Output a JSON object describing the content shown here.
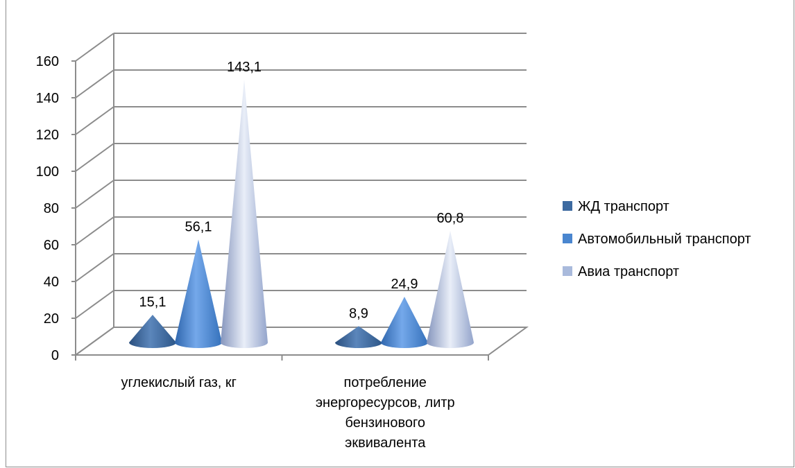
{
  "chart_data": {
    "type": "bar",
    "style": "3d-cone",
    "categories": [
      [
        "углекислый газ, кг"
      ],
      [
        "потребление",
        "энергоресурсов, литр",
        "бензинового",
        "эквивалента"
      ]
    ],
    "series": [
      {
        "name": "ЖД транспорт",
        "values": [
          15.1,
          8.9
        ],
        "labels": [
          "15,1",
          "8,9"
        ],
        "color": "#3d6aa0"
      },
      {
        "name": "Автомобильный транспорт",
        "values": [
          56.1,
          24.9
        ],
        "labels": [
          "56,1",
          "24,9"
        ],
        "color": "#4a86cf"
      },
      {
        "name": "Авиа транспорт",
        "values": [
          143.1,
          60.8
        ],
        "labels": [
          "143,1",
          "60,8"
        ],
        "color": "#a9badc"
      }
    ],
    "yticks": [
      "0",
      "20",
      "40",
      "60",
      "80",
      "100",
      "120",
      "140",
      "160"
    ],
    "ylim": [
      0,
      160
    ],
    "grid": true,
    "legend": "right"
  }
}
